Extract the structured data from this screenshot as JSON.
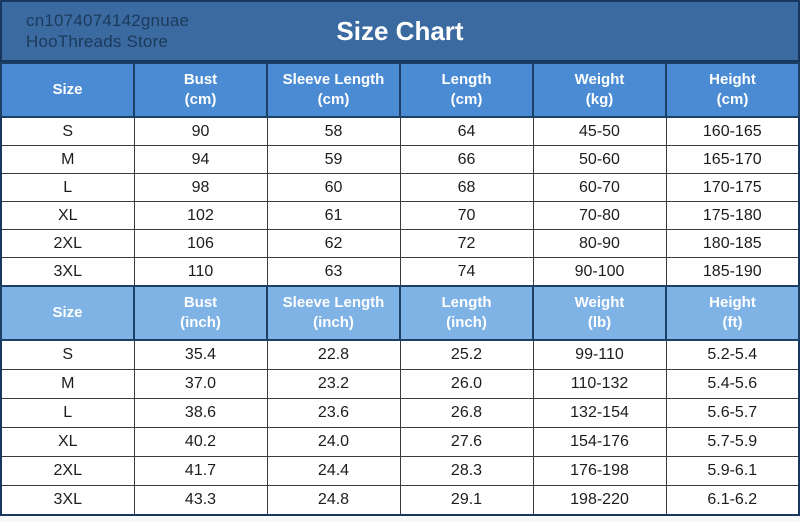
{
  "banner": {
    "store_line1": "cn1074074142gnuae",
    "store_line2": "HooThreads Store",
    "title": "Size Chart"
  },
  "colors": {
    "banner_bg": "#3B6AA0",
    "banner_border": "#17375E",
    "store_text": "#1B3A5C",
    "title_text": "#FFFFFF",
    "header_cm_bg": "#4A8BD3",
    "header_inch_bg": "#7FB2E5",
    "header_text": "#FFFFFF",
    "cell_border": "#3B3B3B",
    "cell_bg": "#FFFFFF",
    "cell_text": "#1C1C1C"
  },
  "table_cm": {
    "headers": [
      {
        "label": "Size",
        "unit": ""
      },
      {
        "label": "Bust",
        "unit": "(cm)"
      },
      {
        "label": "Sleeve Length",
        "unit": "(cm)"
      },
      {
        "label": "Length",
        "unit": "(cm)"
      },
      {
        "label": "Weight",
        "unit": "(kg)"
      },
      {
        "label": "Height",
        "unit": "(cm)"
      }
    ],
    "rows": [
      [
        "S",
        "90",
        "58",
        "64",
        "45-50",
        "160-165"
      ],
      [
        "M",
        "94",
        "59",
        "66",
        "50-60",
        "165-170"
      ],
      [
        "L",
        "98",
        "60",
        "68",
        "60-70",
        "170-175"
      ],
      [
        "XL",
        "102",
        "61",
        "70",
        "70-80",
        "175-180"
      ],
      [
        "2XL",
        "106",
        "62",
        "72",
        "80-90",
        "180-185"
      ],
      [
        "3XL",
        "110",
        "63",
        "74",
        "90-100",
        "185-190"
      ]
    ]
  },
  "table_inch": {
    "headers": [
      {
        "label": "Size",
        "unit": ""
      },
      {
        "label": "Bust",
        "unit": "(inch)"
      },
      {
        "label": "Sleeve Length",
        "unit": "(inch)"
      },
      {
        "label": "Length",
        "unit": "(inch)"
      },
      {
        "label": "Weight",
        "unit": "(lb)"
      },
      {
        "label": "Height",
        "unit": "(ft)"
      }
    ],
    "rows": [
      [
        "S",
        "35.4",
        "22.8",
        "25.2",
        "99-110",
        "5.2-5.4"
      ],
      [
        "M",
        "37.0",
        "23.2",
        "26.0",
        "110-132",
        "5.4-5.6"
      ],
      [
        "L",
        "38.6",
        "23.6",
        "26.8",
        "132-154",
        "5.6-5.7"
      ],
      [
        "XL",
        "40.2",
        "24.0",
        "27.6",
        "154-176",
        "5.7-5.9"
      ],
      [
        "2XL",
        "41.7",
        "24.4",
        "28.3",
        "176-198",
        "5.9-6.1"
      ],
      [
        "3XL",
        "43.3",
        "24.8",
        "29.1",
        "198-220",
        "6.1-6.2"
      ]
    ]
  },
  "chart_data": [
    {
      "type": "table",
      "title": "Size Chart",
      "unit_system": "metric",
      "columns": [
        "Size",
        "Bust (cm)",
        "Sleeve Length (cm)",
        "Length (cm)",
        "Weight (kg)",
        "Height (cm)"
      ],
      "rows": [
        [
          "S",
          "90",
          "58",
          "64",
          "45-50",
          "160-165"
        ],
        [
          "M",
          "94",
          "59",
          "66",
          "50-60",
          "165-170"
        ],
        [
          "L",
          "98",
          "60",
          "68",
          "60-70",
          "170-175"
        ],
        [
          "XL",
          "102",
          "61",
          "70",
          "70-80",
          "175-180"
        ],
        [
          "2XL",
          "106",
          "62",
          "72",
          "80-90",
          "180-185"
        ],
        [
          "3XL",
          "110",
          "63",
          "74",
          "90-100",
          "185-190"
        ]
      ]
    },
    {
      "type": "table",
      "title": "Size Chart",
      "unit_system": "imperial",
      "columns": [
        "Size",
        "Bust (inch)",
        "Sleeve Length (inch)",
        "Length (inch)",
        "Weight (lb)",
        "Height (ft)"
      ],
      "rows": [
        [
          "S",
          "35.4",
          "22.8",
          "25.2",
          "99-110",
          "5.2-5.4"
        ],
        [
          "M",
          "37.0",
          "23.2",
          "26.0",
          "110-132",
          "5.4-5.6"
        ],
        [
          "L",
          "38.6",
          "23.6",
          "26.8",
          "132-154",
          "5.6-5.7"
        ],
        [
          "XL",
          "40.2",
          "24.0",
          "27.6",
          "154-176",
          "5.7-5.9"
        ],
        [
          "2XL",
          "41.7",
          "24.4",
          "28.3",
          "176-198",
          "5.9-6.1"
        ],
        [
          "3XL",
          "43.3",
          "24.8",
          "29.1",
          "198-220",
          "6.1-6.2"
        ]
      ]
    }
  ]
}
